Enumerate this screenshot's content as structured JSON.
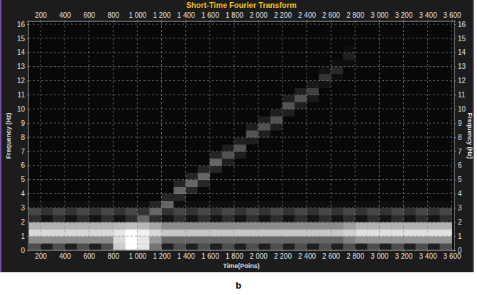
{
  "chart_data": {
    "type": "heatmap",
    "title": "Short-Time Fourier Transform",
    "x_label": "Time(Poins)",
    "y_label": "Frequency (Hz)",
    "panel_label": "b",
    "xlim": [
      100,
      3620
    ],
    "ylim": [
      0,
      16.2
    ],
    "xticks": [
      200,
      400,
      600,
      800,
      {
        "value": 1000,
        "label": "1 000"
      },
      {
        "value": 1200,
        "label": "1 200"
      },
      {
        "value": 1400,
        "label": "1 400"
      },
      {
        "value": 1600,
        "label": "1 600"
      },
      {
        "value": 1800,
        "label": "1 800"
      },
      {
        "value": 2000,
        "label": "2 000"
      },
      {
        "value": 2200,
        "label": "2 200"
      },
      {
        "value": 2400,
        "label": "2 400"
      },
      {
        "value": 2600,
        "label": "2 600"
      },
      {
        "value": 2800,
        "label": "2 800"
      },
      {
        "value": 3000,
        "label": "3 000"
      },
      {
        "value": 3200,
        "label": "3 200"
      },
      {
        "value": 3400,
        "label": "3 400"
      },
      {
        "value": 3600,
        "label": "3 600"
      }
    ],
    "yticks": [
      0,
      1,
      2,
      3,
      4,
      5,
      6,
      7,
      8,
      9,
      10,
      11,
      12,
      13,
      14,
      15,
      16
    ],
    "grid": true,
    "zlim": [
      0,
      100
    ],
    "x_edges": [
      100,
      200,
      300,
      400,
      500,
      600,
      700,
      800,
      900,
      1000,
      1100,
      1200,
      1300,
      1400,
      1500,
      1600,
      1700,
      1800,
      1900,
      2000,
      2100,
      2200,
      2300,
      2400,
      2500,
      2600,
      2700,
      2800,
      2900,
      3000,
      3100,
      3200,
      3300,
      3400,
      3500,
      3600
    ],
    "y_edges": [
      0,
      0.5,
      1,
      1.5,
      2,
      2.5,
      3,
      3.5,
      4,
      4.5,
      5,
      5.5,
      6,
      6.5,
      7,
      7.5,
      8,
      8.5,
      9,
      9.5,
      10,
      10.5,
      11,
      11.5,
      12,
      12.5,
      13,
      13.5,
      14,
      14.5,
      15,
      15.5,
      16
    ],
    "z": [
      [
        30,
        12,
        30,
        12,
        30,
        12,
        30,
        80,
        100,
        90,
        45,
        12,
        30,
        12,
        30,
        12,
        30,
        12,
        30,
        12,
        30,
        12,
        30,
        12,
        30,
        12,
        30,
        12,
        30,
        12,
        30,
        12,
        30,
        12,
        30
      ],
      [
        55,
        55,
        55,
        55,
        55,
        55,
        55,
        85,
        100,
        90,
        60,
        40,
        40,
        40,
        40,
        40,
        40,
        40,
        40,
        40,
        40,
        40,
        40,
        40,
        40,
        40,
        50,
        58,
        58,
        58,
        58,
        58,
        58,
        58,
        58
      ],
      [
        85,
        85,
        85,
        85,
        85,
        85,
        85,
        90,
        100,
        95,
        85,
        78,
        78,
        78,
        78,
        78,
        78,
        78,
        78,
        78,
        78,
        78,
        78,
        78,
        78,
        78,
        82,
        88,
        88,
        88,
        88,
        88,
        88,
        88,
        88
      ],
      [
        70,
        70,
        70,
        70,
        70,
        70,
        70,
        72,
        75,
        72,
        65,
        55,
        55,
        55,
        55,
        55,
        55,
        55,
        55,
        55,
        55,
        55,
        55,
        55,
        55,
        55,
        62,
        70,
        70,
        70,
        70,
        70,
        70,
        70,
        70
      ],
      [
        18,
        8,
        18,
        8,
        18,
        8,
        18,
        8,
        18,
        40,
        18,
        8,
        18,
        8,
        18,
        8,
        18,
        8,
        18,
        8,
        18,
        8,
        18,
        8,
        18,
        8,
        18,
        8,
        18,
        8,
        18,
        8,
        18,
        8,
        18
      ],
      [
        28,
        20,
        28,
        20,
        28,
        20,
        28,
        20,
        28,
        20,
        40,
        20,
        28,
        20,
        28,
        20,
        28,
        20,
        28,
        20,
        28,
        20,
        28,
        20,
        28,
        20,
        28,
        20,
        28,
        20,
        28,
        20,
        28,
        20,
        28
      ],
      [
        6,
        6,
        6,
        6,
        6,
        6,
        6,
        6,
        6,
        6,
        15,
        40,
        6,
        6,
        6,
        6,
        6,
        6,
        6,
        6,
        6,
        6,
        6,
        6,
        6,
        6,
        6,
        6,
        6,
        6,
        6,
        6,
        6,
        6,
        6
      ],
      [
        3,
        3,
        3,
        3,
        3,
        3,
        3,
        3,
        3,
        3,
        3,
        15,
        15,
        3,
        3,
        3,
        3,
        3,
        3,
        3,
        3,
        3,
        3,
        3,
        3,
        3,
        3,
        3,
        3,
        3,
        3,
        3,
        3,
        3,
        3
      ],
      [
        3,
        3,
        3,
        3,
        3,
        3,
        3,
        3,
        3,
        3,
        3,
        3,
        40,
        15,
        3,
        3,
        3,
        3,
        3,
        3,
        3,
        3,
        3,
        3,
        3,
        3,
        3,
        3,
        3,
        3,
        3,
        3,
        3,
        3,
        3
      ],
      [
        3,
        3,
        3,
        3,
        3,
        3,
        3,
        3,
        3,
        3,
        3,
        3,
        15,
        40,
        15,
        3,
        3,
        3,
        3,
        3,
        3,
        3,
        3,
        3,
        3,
        3,
        3,
        3,
        3,
        3,
        3,
        3,
        3,
        3,
        3
      ],
      [
        3,
        3,
        3,
        3,
        3,
        3,
        3,
        3,
        3,
        3,
        3,
        3,
        3,
        15,
        40,
        3,
        3,
        3,
        3,
        3,
        3,
        3,
        3,
        3,
        3,
        3,
        3,
        3,
        3,
        3,
        3,
        3,
        3,
        3,
        3
      ],
      [
        3,
        3,
        3,
        3,
        3,
        3,
        3,
        3,
        3,
        3,
        3,
        3,
        3,
        3,
        15,
        15,
        3,
        3,
        3,
        3,
        3,
        3,
        3,
        3,
        3,
        3,
        3,
        3,
        3,
        3,
        3,
        3,
        3,
        3,
        3
      ],
      [
        3,
        3,
        3,
        3,
        3,
        3,
        3,
        3,
        3,
        3,
        3,
        3,
        3,
        3,
        3,
        40,
        12,
        3,
        3,
        3,
        3,
        3,
        3,
        3,
        3,
        3,
        3,
        3,
        3,
        3,
        3,
        3,
        3,
        3,
        3
      ],
      [
        3,
        3,
        3,
        3,
        3,
        3,
        3,
        3,
        3,
        3,
        3,
        3,
        3,
        3,
        3,
        15,
        32,
        12,
        3,
        3,
        3,
        3,
        3,
        3,
        3,
        3,
        3,
        3,
        3,
        3,
        3,
        3,
        3,
        3,
        3
      ],
      [
        3,
        3,
        3,
        3,
        3,
        3,
        3,
        3,
        3,
        3,
        3,
        3,
        3,
        3,
        3,
        3,
        12,
        32,
        3,
        3,
        3,
        3,
        3,
        3,
        3,
        3,
        3,
        3,
        3,
        3,
        3,
        3,
        3,
        3,
        3
      ],
      [
        3,
        3,
        3,
        3,
        3,
        3,
        3,
        3,
        3,
        3,
        3,
        3,
        3,
        3,
        3,
        3,
        3,
        12,
        12,
        3,
        3,
        3,
        3,
        3,
        3,
        3,
        3,
        3,
        3,
        3,
        3,
        3,
        3,
        3,
        3
      ],
      [
        3,
        3,
        3,
        3,
        3,
        3,
        3,
        3,
        3,
        3,
        3,
        3,
        3,
        3,
        3,
        3,
        3,
        3,
        32,
        12,
        3,
        3,
        3,
        3,
        3,
        3,
        3,
        3,
        3,
        3,
        3,
        3,
        3,
        3,
        3
      ],
      [
        3,
        3,
        3,
        3,
        3,
        3,
        3,
        3,
        3,
        3,
        3,
        3,
        3,
        3,
        3,
        3,
        3,
        3,
        12,
        32,
        12,
        3,
        3,
        3,
        3,
        3,
        3,
        3,
        3,
        3,
        3,
        3,
        3,
        3,
        3
      ],
      [
        3,
        3,
        3,
        3,
        3,
        3,
        3,
        3,
        3,
        3,
        3,
        3,
        3,
        3,
        3,
        3,
        3,
        3,
        3,
        12,
        32,
        3,
        3,
        3,
        3,
        3,
        3,
        3,
        3,
        3,
        3,
        3,
        3,
        3,
        3
      ],
      [
        3,
        3,
        3,
        3,
        3,
        3,
        3,
        3,
        3,
        3,
        3,
        3,
        3,
        3,
        3,
        3,
        3,
        3,
        3,
        3,
        12,
        12,
        3,
        3,
        3,
        3,
        3,
        3,
        3,
        3,
        3,
        3,
        3,
        3,
        3
      ],
      [
        3,
        3,
        3,
        3,
        3,
        3,
        3,
        3,
        3,
        3,
        3,
        3,
        3,
        3,
        3,
        3,
        3,
        3,
        3,
        3,
        3,
        32,
        12,
        3,
        3,
        3,
        3,
        3,
        3,
        3,
        3,
        3,
        3,
        3,
        3
      ],
      [
        3,
        3,
        3,
        3,
        3,
        3,
        3,
        3,
        3,
        3,
        3,
        3,
        3,
        3,
        3,
        3,
        3,
        3,
        3,
        3,
        3,
        12,
        32,
        10,
        3,
        3,
        3,
        3,
        3,
        3,
        3,
        3,
        3,
        3,
        3
      ],
      [
        3,
        3,
        3,
        3,
        3,
        3,
        3,
        3,
        3,
        3,
        3,
        3,
        3,
        3,
        3,
        3,
        3,
        3,
        3,
        3,
        3,
        3,
        12,
        25,
        3,
        3,
        3,
        3,
        3,
        3,
        3,
        3,
        3,
        3,
        3
      ],
      [
        3,
        3,
        3,
        3,
        3,
        3,
        3,
        3,
        3,
        3,
        3,
        3,
        3,
        3,
        3,
        3,
        3,
        3,
        3,
        3,
        3,
        3,
        3,
        10,
        8,
        3,
        3,
        3,
        3,
        3,
        3,
        3,
        3,
        3,
        3
      ],
      [
        3,
        3,
        3,
        3,
        3,
        3,
        3,
        3,
        3,
        3,
        3,
        3,
        3,
        3,
        3,
        3,
        3,
        3,
        3,
        3,
        3,
        3,
        3,
        3,
        20,
        6,
        3,
        3,
        3,
        3,
        3,
        3,
        3,
        3,
        3
      ],
      [
        3,
        3,
        3,
        3,
        3,
        3,
        3,
        3,
        3,
        3,
        3,
        3,
        3,
        3,
        3,
        3,
        3,
        3,
        3,
        3,
        3,
        3,
        3,
        3,
        8,
        16,
        3,
        3,
        3,
        3,
        3,
        3,
        3,
        3,
        3
      ],
      [
        3,
        3,
        3,
        3,
        3,
        3,
        3,
        3,
        3,
        3,
        3,
        3,
        3,
        3,
        3,
        3,
        3,
        3,
        3,
        3,
        3,
        3,
        3,
        3,
        3,
        6,
        5,
        3,
        3,
        3,
        3,
        3,
        3,
        3,
        3
      ],
      [
        3,
        3,
        3,
        3,
        3,
        3,
        3,
        3,
        3,
        3,
        3,
        3,
        3,
        3,
        3,
        3,
        3,
        3,
        3,
        3,
        3,
        3,
        3,
        3,
        3,
        3,
        12,
        3,
        3,
        3,
        3,
        3,
        3,
        3,
        3
      ],
      [
        3,
        3,
        3,
        3,
        3,
        3,
        3,
        3,
        3,
        3,
        3,
        3,
        3,
        3,
        3,
        3,
        3,
        3,
        3,
        3,
        3,
        3,
        3,
        3,
        3,
        3,
        5,
        3,
        3,
        3,
        3,
        3,
        3,
        3,
        3
      ],
      [
        3,
        3,
        3,
        3,
        3,
        3,
        3,
        3,
        3,
        3,
        3,
        3,
        3,
        3,
        3,
        3,
        3,
        3,
        3,
        3,
        3,
        3,
        3,
        3,
        3,
        3,
        3,
        3,
        3,
        3,
        3,
        3,
        3,
        3,
        3
      ],
      [
        3,
        3,
        3,
        3,
        3,
        3,
        3,
        3,
        3,
        3,
        3,
        3,
        3,
        3,
        3,
        3,
        3,
        3,
        3,
        3,
        3,
        3,
        3,
        3,
        3,
        3,
        3,
        3,
        3,
        3,
        3,
        3,
        3,
        3,
        3
      ],
      [
        3,
        3,
        3,
        3,
        3,
        3,
        3,
        3,
        3,
        3,
        3,
        3,
        3,
        3,
        3,
        3,
        3,
        3,
        3,
        3,
        3,
        3,
        3,
        3,
        3,
        3,
        3,
        3,
        3,
        3,
        3,
        3,
        3,
        3,
        3
      ]
    ]
  }
}
